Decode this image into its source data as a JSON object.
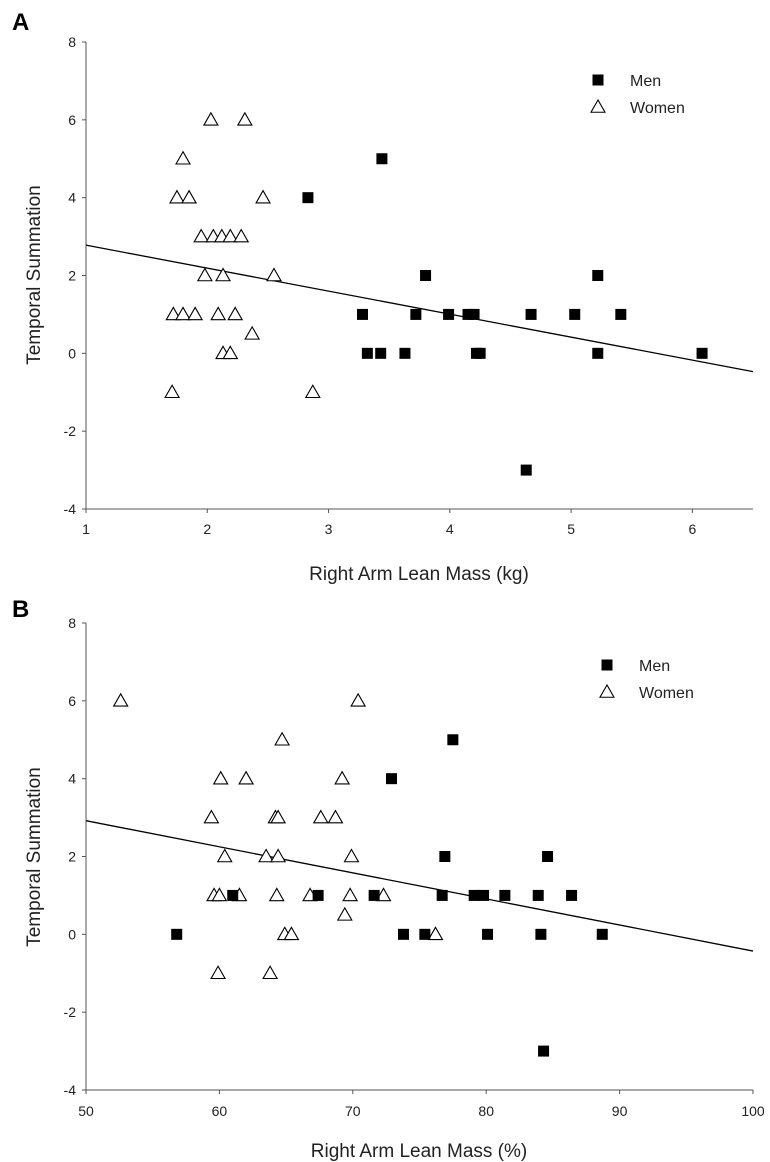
{
  "chart_data": [
    {
      "panel": "A",
      "type": "scatter",
      "xlabel": "Right Arm Lean Mass (kg)",
      "ylabel": "Temporal Summation",
      "xlim": [
        1,
        6.5
      ],
      "ylim": [
        -4,
        8
      ],
      "xticks": [
        1,
        2,
        3,
        4,
        5,
        6
      ],
      "yticks": [
        -4,
        -2,
        0,
        2,
        4,
        6,
        8
      ],
      "legend": "top-right",
      "series": [
        {
          "name": "Men",
          "marker": "square-filled",
          "points": [
            [
              2.83,
              4
            ],
            [
              3.44,
              5
            ],
            [
              3.8,
              2
            ],
            [
              5.22,
              2
            ],
            [
              3.28,
              1
            ],
            [
              3.72,
              1
            ],
            [
              3.99,
              1
            ],
            [
              4.15,
              1
            ],
            [
              4.2,
              1
            ],
            [
              4.67,
              1
            ],
            [
              5.03,
              1
            ],
            [
              5.41,
              1
            ],
            [
              3.32,
              0
            ],
            [
              3.43,
              0
            ],
            [
              3.63,
              0
            ],
            [
              4.22,
              0
            ],
            [
              4.25,
              0
            ],
            [
              5.22,
              0
            ],
            [
              6.08,
              0
            ],
            [
              4.63,
              -3
            ]
          ]
        },
        {
          "name": "Women",
          "marker": "triangle-open",
          "points": [
            [
              2.03,
              6
            ],
            [
              2.31,
              6
            ],
            [
              1.8,
              5
            ],
            [
              1.75,
              4
            ],
            [
              1.85,
              4
            ],
            [
              2.46,
              4
            ],
            [
              1.95,
              3
            ],
            [
              2.05,
              3
            ],
            [
              2.12,
              3
            ],
            [
              2.19,
              3
            ],
            [
              2.28,
              3
            ],
            [
              1.98,
              2
            ],
            [
              2.13,
              2
            ],
            [
              2.55,
              2
            ],
            [
              1.72,
              1
            ],
            [
              1.8,
              1
            ],
            [
              1.9,
              1
            ],
            [
              2.09,
              1
            ],
            [
              2.23,
              1
            ],
            [
              2.37,
              0.5
            ],
            [
              2.13,
              0
            ],
            [
              2.19,
              0
            ],
            [
              1.71,
              -1
            ],
            [
              2.87,
              -1
            ]
          ]
        }
      ],
      "trendline": {
        "x": [
          1,
          6.5
        ],
        "y": [
          2.78,
          -0.47
        ]
      }
    },
    {
      "panel": "B",
      "type": "scatter",
      "xlabel": "Right Arm Lean Mass (%)",
      "ylabel": "Temporal Summation",
      "xlim": [
        50,
        100
      ],
      "ylim": [
        -4,
        8
      ],
      "xticks": [
        50,
        60,
        70,
        80,
        90,
        100
      ],
      "yticks": [
        -4,
        -2,
        0,
        2,
        4,
        6,
        8
      ],
      "legend": "top-right",
      "series": [
        {
          "name": "Men",
          "marker": "square-filled",
          "points": [
            [
              77.5,
              5
            ],
            [
              72.9,
              4
            ],
            [
              76.9,
              2
            ],
            [
              84.6,
              2
            ],
            [
              61,
              1
            ],
            [
              67.4,
              1
            ],
            [
              71.6,
              1
            ],
            [
              76.7,
              1
            ],
            [
              79.1,
              1
            ],
            [
              79.8,
              1
            ],
            [
              81.4,
              1
            ],
            [
              83.9,
              1
            ],
            [
              86.4,
              1
            ],
            [
              56.8,
              0
            ],
            [
              73.8,
              0
            ],
            [
              75.4,
              0
            ],
            [
              80.1,
              0
            ],
            [
              84.1,
              0
            ],
            [
              88.7,
              0
            ],
            [
              84.3,
              -3
            ]
          ]
        },
        {
          "name": "Women",
          "marker": "triangle-open",
          "points": [
            [
              52.6,
              6
            ],
            [
              70.4,
              6
            ],
            [
              64.7,
              5
            ],
            [
              60.1,
              4
            ],
            [
              62,
              4
            ],
            [
              69.2,
              4
            ],
            [
              59.4,
              3
            ],
            [
              64.2,
              3
            ],
            [
              64.4,
              3
            ],
            [
              67.6,
              3
            ],
            [
              68.7,
              3
            ],
            [
              60.4,
              2
            ],
            [
              63.5,
              2
            ],
            [
              64.4,
              2
            ],
            [
              69.9,
              2
            ],
            [
              59.6,
              1
            ],
            [
              60,
              1
            ],
            [
              61.5,
              1
            ],
            [
              64.3,
              1
            ],
            [
              66.8,
              1
            ],
            [
              69.8,
              1
            ],
            [
              72.3,
              1
            ],
            [
              69.4,
              0.5
            ],
            [
              64.9,
              0
            ],
            [
              65.4,
              0
            ],
            [
              76.2,
              0
            ],
            [
              59.9,
              -1
            ],
            [
              63.8,
              -1
            ]
          ]
        }
      ],
      "trendline": {
        "x": [
          50,
          100
        ],
        "y": [
          2.92,
          -0.43
        ]
      }
    }
  ]
}
